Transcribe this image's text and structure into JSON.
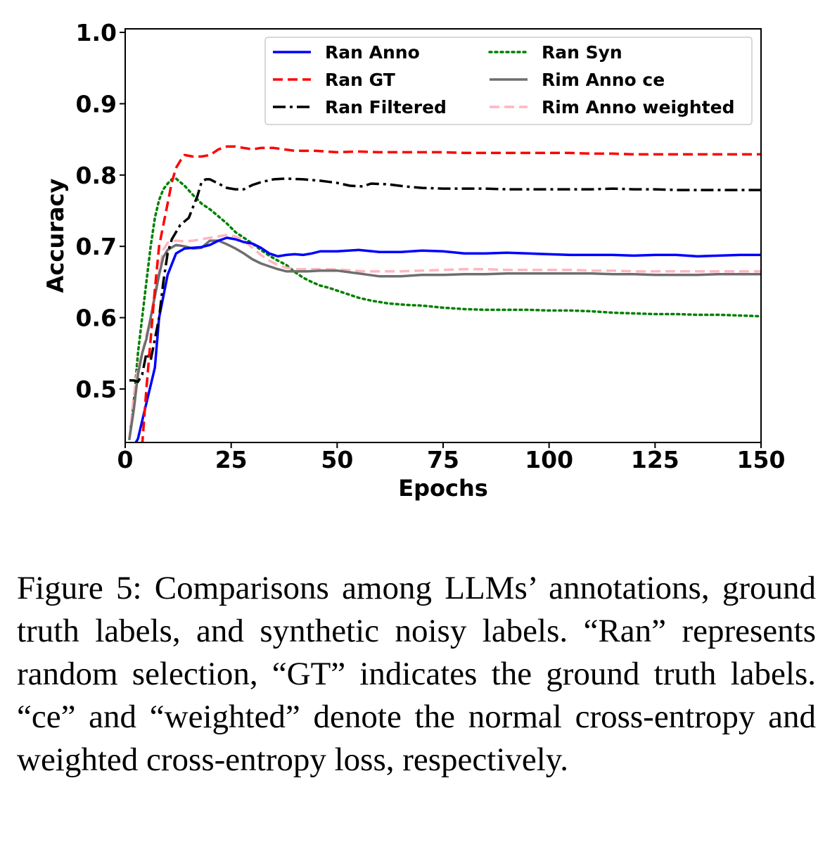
{
  "chart_data": {
    "type": "line",
    "xlabel": "Epochs",
    "ylabel": "Accuracy",
    "xlim": [
      0,
      150
    ],
    "ylim": [
      0.425,
      1.005
    ],
    "xticks": [
      0,
      25,
      50,
      75,
      100,
      125,
      150
    ],
    "xtick_labels": [
      "0",
      "25",
      "50",
      "75",
      "100",
      "125",
      "150"
    ],
    "yticks": [
      0.5,
      0.6,
      0.7,
      0.8,
      0.9,
      1.0
    ],
    "ytick_labels": [
      "0.5",
      "0.6",
      "0.7",
      "0.8",
      "0.9",
      "1.0"
    ],
    "grid": false,
    "legend_position": "top-right",
    "series": [
      {
        "name": "Ran Anno",
        "color": "#0000ff",
        "style": "solid",
        "points": [
          [
            1,
            0.41
          ],
          [
            3,
            0.43
          ],
          [
            5,
            0.48
          ],
          [
            7,
            0.53
          ],
          [
            8,
            0.6
          ],
          [
            10,
            0.66
          ],
          [
            12,
            0.69
          ],
          [
            14,
            0.697
          ],
          [
            16,
            0.698
          ],
          [
            18,
            0.699
          ],
          [
            20,
            0.702
          ],
          [
            22,
            0.708
          ],
          [
            24,
            0.712
          ],
          [
            26,
            0.71
          ],
          [
            28,
            0.706
          ],
          [
            30,
            0.704
          ],
          [
            32,
            0.698
          ],
          [
            34,
            0.69
          ],
          [
            36,
            0.686
          ],
          [
            38,
            0.688
          ],
          [
            40,
            0.689
          ],
          [
            42,
            0.688
          ],
          [
            44,
            0.69
          ],
          [
            46,
            0.693
          ],
          [
            50,
            0.693
          ],
          [
            55,
            0.695
          ],
          [
            60,
            0.692
          ],
          [
            65,
            0.692
          ],
          [
            70,
            0.694
          ],
          [
            75,
            0.693
          ],
          [
            80,
            0.69
          ],
          [
            85,
            0.69
          ],
          [
            90,
            0.691
          ],
          [
            95,
            0.69
          ],
          [
            100,
            0.689
          ],
          [
            105,
            0.688
          ],
          [
            110,
            0.688
          ],
          [
            115,
            0.688
          ],
          [
            120,
            0.687
          ],
          [
            125,
            0.688
          ],
          [
            130,
            0.688
          ],
          [
            135,
            0.686
          ],
          [
            140,
            0.687
          ],
          [
            145,
            0.688
          ],
          [
            150,
            0.688
          ]
        ]
      },
      {
        "name": "Ran GT",
        "color": "#ff0000",
        "style": "dashed",
        "points": [
          [
            4,
            0.42
          ],
          [
            5,
            0.5
          ],
          [
            6,
            0.57
          ],
          [
            7,
            0.64
          ],
          [
            8,
            0.7
          ],
          [
            9,
            0.73
          ],
          [
            10,
            0.76
          ],
          [
            11,
            0.79
          ],
          [
            12,
            0.81
          ],
          [
            13,
            0.82
          ],
          [
            14,
            0.828
          ],
          [
            16,
            0.826
          ],
          [
            18,
            0.826
          ],
          [
            20,
            0.828
          ],
          [
            22,
            0.836
          ],
          [
            24,
            0.84
          ],
          [
            26,
            0.84
          ],
          [
            28,
            0.838
          ],
          [
            30,
            0.836
          ],
          [
            32,
            0.838
          ],
          [
            35,
            0.838
          ],
          [
            40,
            0.834
          ],
          [
            45,
            0.834
          ],
          [
            50,
            0.832
          ],
          [
            55,
            0.833
          ],
          [
            60,
            0.832
          ],
          [
            65,
            0.832
          ],
          [
            70,
            0.832
          ],
          [
            75,
            0.832
          ],
          [
            80,
            0.831
          ],
          [
            85,
            0.831
          ],
          [
            90,
            0.831
          ],
          [
            95,
            0.831
          ],
          [
            100,
            0.831
          ],
          [
            105,
            0.831
          ],
          [
            110,
            0.83
          ],
          [
            115,
            0.83
          ],
          [
            120,
            0.829
          ],
          [
            125,
            0.829
          ],
          [
            130,
            0.829
          ],
          [
            135,
            0.829
          ],
          [
            140,
            0.829
          ],
          [
            145,
            0.829
          ],
          [
            150,
            0.829
          ]
        ]
      },
      {
        "name": "Ran Filtered",
        "color": "#000000",
        "style": "dashdot",
        "points": [
          [
            1,
            0.512
          ],
          [
            2,
            0.512
          ],
          [
            3,
            0.51
          ],
          [
            4,
            0.52
          ],
          [
            5,
            0.55
          ],
          [
            6,
            0.54
          ],
          [
            7,
            0.57
          ],
          [
            8,
            0.6
          ],
          [
            9,
            0.65
          ],
          [
            10,
            0.69
          ],
          [
            11,
            0.71
          ],
          [
            12,
            0.72
          ],
          [
            13,
            0.73
          ],
          [
            14,
            0.735
          ],
          [
            15,
            0.74
          ],
          [
            16,
            0.755
          ],
          [
            17,
            0.77
          ],
          [
            18,
            0.79
          ],
          [
            19,
            0.794
          ],
          [
            20,
            0.794
          ],
          [
            22,
            0.788
          ],
          [
            24,
            0.782
          ],
          [
            26,
            0.78
          ],
          [
            28,
            0.78
          ],
          [
            30,
            0.786
          ],
          [
            32,
            0.79
          ],
          [
            35,
            0.794
          ],
          [
            38,
            0.795
          ],
          [
            42,
            0.794
          ],
          [
            46,
            0.792
          ],
          [
            50,
            0.789
          ],
          [
            53,
            0.785
          ],
          [
            56,
            0.784
          ],
          [
            58,
            0.788
          ],
          [
            62,
            0.787
          ],
          [
            66,
            0.784
          ],
          [
            70,
            0.782
          ],
          [
            75,
            0.781
          ],
          [
            80,
            0.781
          ],
          [
            85,
            0.781
          ],
          [
            90,
            0.78
          ],
          [
            95,
            0.78
          ],
          [
            100,
            0.78
          ],
          [
            105,
            0.78
          ],
          [
            110,
            0.78
          ],
          [
            115,
            0.781
          ],
          [
            120,
            0.78
          ],
          [
            125,
            0.78
          ],
          [
            130,
            0.779
          ],
          [
            135,
            0.779
          ],
          [
            140,
            0.779
          ],
          [
            145,
            0.779
          ],
          [
            150,
            0.779
          ]
        ]
      },
      {
        "name": "Ran Syn",
        "color": "#008000",
        "style": "dotted",
        "points": [
          [
            1,
            0.43
          ],
          [
            2,
            0.48
          ],
          [
            3,
            0.55
          ],
          [
            4,
            0.6
          ],
          [
            5,
            0.65
          ],
          [
            6,
            0.7
          ],
          [
            7,
            0.74
          ],
          [
            8,
            0.765
          ],
          [
            9,
            0.78
          ],
          [
            10,
            0.788
          ],
          [
            11,
            0.794
          ],
          [
            12,
            0.795
          ],
          [
            14,
            0.785
          ],
          [
            16,
            0.772
          ],
          [
            18,
            0.76
          ],
          [
            20,
            0.752
          ],
          [
            22,
            0.742
          ],
          [
            24,
            0.732
          ],
          [
            26,
            0.72
          ],
          [
            28,
            0.712
          ],
          [
            30,
            0.704
          ],
          [
            32,
            0.695
          ],
          [
            34,
            0.687
          ],
          [
            36,
            0.68
          ],
          [
            38,
            0.674
          ],
          [
            40,
            0.664
          ],
          [
            42,
            0.656
          ],
          [
            44,
            0.65
          ],
          [
            46,
            0.645
          ],
          [
            48,
            0.642
          ],
          [
            50,
            0.638
          ],
          [
            52,
            0.634
          ],
          [
            55,
            0.628
          ],
          [
            58,
            0.624
          ],
          [
            62,
            0.62
          ],
          [
            66,
            0.618
          ],
          [
            70,
            0.617
          ],
          [
            75,
            0.614
          ],
          [
            80,
            0.612
          ],
          [
            85,
            0.611
          ],
          [
            90,
            0.611
          ],
          [
            95,
            0.611
          ],
          [
            100,
            0.61
          ],
          [
            105,
            0.61
          ],
          [
            110,
            0.609
          ],
          [
            115,
            0.607
          ],
          [
            120,
            0.606
          ],
          [
            125,
            0.605
          ],
          [
            130,
            0.605
          ],
          [
            135,
            0.604
          ],
          [
            140,
            0.604
          ],
          [
            145,
            0.603
          ],
          [
            150,
            0.602
          ]
        ]
      },
      {
        "name": "Rim Anno ce",
        "color": "#6e6e6e",
        "style": "solid",
        "points": [
          [
            1,
            0.43
          ],
          [
            2,
            0.47
          ],
          [
            3,
            0.52
          ],
          [
            4,
            0.55
          ],
          [
            5,
            0.57
          ],
          [
            6,
            0.6
          ],
          [
            7,
            0.63
          ],
          [
            8,
            0.66
          ],
          [
            9,
            0.685
          ],
          [
            10,
            0.695
          ],
          [
            12,
            0.702
          ],
          [
            14,
            0.7
          ],
          [
            16,
            0.697
          ],
          [
            18,
            0.698
          ],
          [
            20,
            0.708
          ],
          [
            22,
            0.708
          ],
          [
            24,
            0.703
          ],
          [
            26,
            0.697
          ],
          [
            28,
            0.69
          ],
          [
            30,
            0.682
          ],
          [
            32,
            0.676
          ],
          [
            34,
            0.672
          ],
          [
            36,
            0.668
          ],
          [
            38,
            0.665
          ],
          [
            40,
            0.665
          ],
          [
            43,
            0.665
          ],
          [
            46,
            0.666
          ],
          [
            50,
            0.666
          ],
          [
            55,
            0.662
          ],
          [
            60,
            0.658
          ],
          [
            65,
            0.658
          ],
          [
            70,
            0.66
          ],
          [
            75,
            0.66
          ],
          [
            80,
            0.661
          ],
          [
            85,
            0.661
          ],
          [
            90,
            0.662
          ],
          [
            95,
            0.662
          ],
          [
            100,
            0.662
          ],
          [
            105,
            0.662
          ],
          [
            110,
            0.662
          ],
          [
            115,
            0.661
          ],
          [
            120,
            0.661
          ],
          [
            125,
            0.66
          ],
          [
            130,
            0.66
          ],
          [
            135,
            0.66
          ],
          [
            140,
            0.661
          ],
          [
            145,
            0.661
          ],
          [
            150,
            0.661
          ]
        ]
      },
      {
        "name": "Rim Anno weighted",
        "color": "#ffb6c1",
        "style": "dashed",
        "points": [
          [
            1,
            0.43
          ],
          [
            2,
            0.49
          ],
          [
            3,
            0.53
          ],
          [
            4,
            0.55
          ],
          [
            5,
            0.575
          ],
          [
            6,
            0.6
          ],
          [
            7,
            0.635
          ],
          [
            8,
            0.665
          ],
          [
            9,
            0.695
          ],
          [
            10,
            0.705
          ],
          [
            12,
            0.708
          ],
          [
            14,
            0.707
          ],
          [
            16,
            0.708
          ],
          [
            18,
            0.71
          ],
          [
            20,
            0.712
          ],
          [
            22,
            0.714
          ],
          [
            24,
            0.716
          ],
          [
            26,
            0.714
          ],
          [
            28,
            0.708
          ],
          [
            30,
            0.698
          ],
          [
            32,
            0.688
          ],
          [
            34,
            0.68
          ],
          [
            36,
            0.674
          ],
          [
            38,
            0.67
          ],
          [
            40,
            0.668
          ],
          [
            44,
            0.668
          ],
          [
            48,
            0.668
          ],
          [
            52,
            0.667
          ],
          [
            56,
            0.665
          ],
          [
            60,
            0.665
          ],
          [
            65,
            0.665
          ],
          [
            70,
            0.666
          ],
          [
            75,
            0.667
          ],
          [
            80,
            0.668
          ],
          [
            85,
            0.668
          ],
          [
            90,
            0.667
          ],
          [
            95,
            0.667
          ],
          [
            100,
            0.667
          ],
          [
            105,
            0.667
          ],
          [
            110,
            0.666
          ],
          [
            115,
            0.666
          ],
          [
            120,
            0.665
          ],
          [
            125,
            0.665
          ],
          [
            130,
            0.665
          ],
          [
            135,
            0.665
          ],
          [
            140,
            0.665
          ],
          [
            145,
            0.665
          ],
          [
            150,
            0.665
          ]
        ]
      }
    ]
  },
  "caption": "Figure 5: Comparisons among LLMs’ annotations, ground truth labels, and synthetic noisy labels. “Ran” represents random selection, “GT” indicates the ground truth labels. “ce” and “weighted” denote the normal cross-entropy and weighted cross-entropy loss, respectively."
}
